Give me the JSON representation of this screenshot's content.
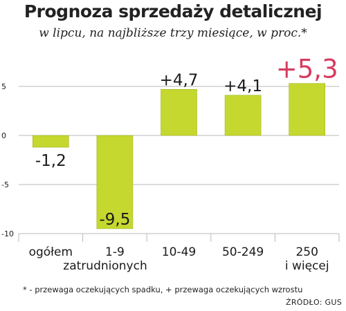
{
  "chart_data": {
    "type": "bar",
    "title": "Prognoza sprzedaży detalicznej",
    "subtitle": "w lipcu, na najbliższe trzy miesiące, w proc.*",
    "categories": [
      [
        "ogółem"
      ],
      [
        "1-9"
      ],
      [
        "10-49"
      ],
      [
        "50-249"
      ],
      [
        "250",
        "i więcej"
      ]
    ],
    "category_group_label": "zatrudnionych",
    "values": [
      -1.2,
      -9.5,
      4.7,
      4.1,
      5.3
    ],
    "value_labels": [
      "-1,2",
      "-9,5",
      "+4,7",
      "+4,1",
      "+5,3"
    ],
    "highlight_index": 4,
    "ylim": [
      -10,
      5
    ],
    "yticks": [
      5,
      0,
      -5,
      -10
    ],
    "ytick_labels": [
      "5",
      "0",
      "-5",
      "-10"
    ],
    "grid": true,
    "colors": {
      "bar": "#c5d82f",
      "bar_edge": "#9fb31a",
      "highlight_label": "#d63c5e",
      "grid": "#b8b8b8",
      "text": "#1a1a1a"
    }
  },
  "footnote": "* - przewaga oczekujących spadku, + przewaga oczekujących wzrostu",
  "source": "ŹRÓDŁO: GUS"
}
